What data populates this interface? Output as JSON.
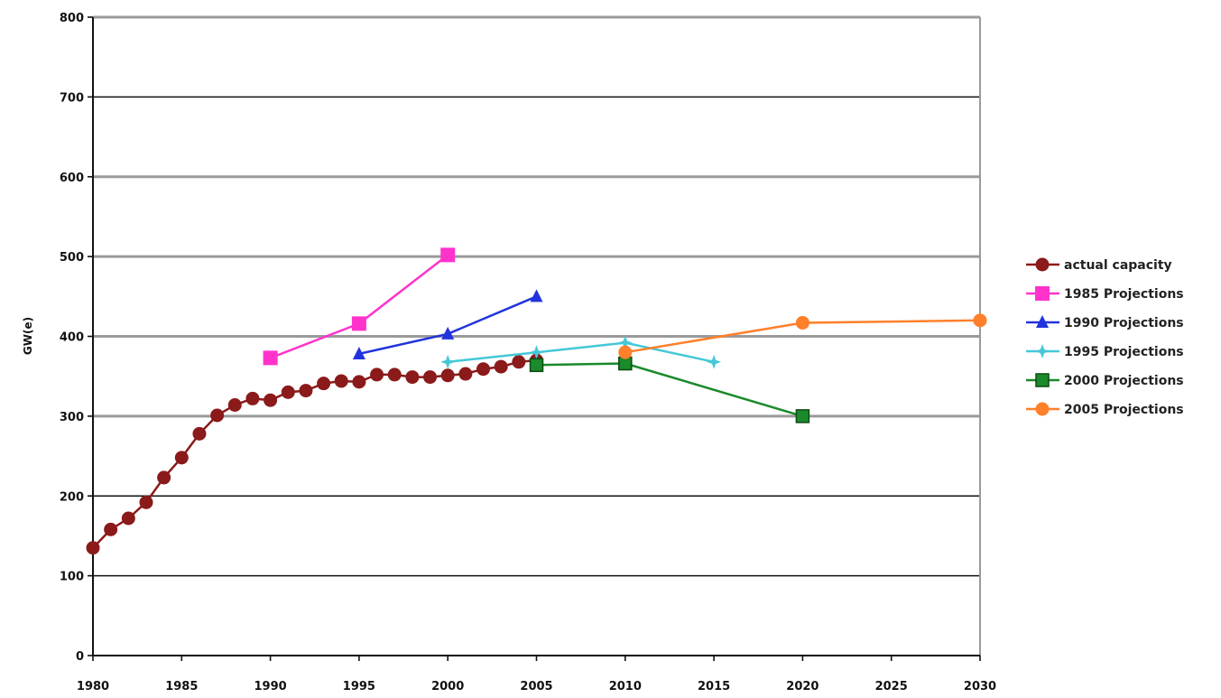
{
  "chart_data": {
    "type": "line",
    "title": "",
    "xlabel": "",
    "ylabel": "GW(e)",
    "xlim": [
      1980,
      2030
    ],
    "ylim": [
      0,
      800
    ],
    "x_ticks": [
      "1980",
      "1985",
      "1990",
      "1995",
      "2000",
      "2005",
      "2010",
      "2015",
      "2020",
      "2025",
      "2030"
    ],
    "y_ticks": [
      "0",
      "100",
      "200",
      "300",
      "400",
      "500",
      "600",
      "700",
      "800"
    ],
    "grid": "horizontal",
    "legend_position": "right",
    "series": [
      {
        "name": "actual capacity",
        "color": "#8b1a1a",
        "marker": "circle",
        "x": [
          1980,
          1981,
          1982,
          1983,
          1984,
          1985,
          1986,
          1987,
          1988,
          1989,
          1990,
          1991,
          1992,
          1993,
          1994,
          1995,
          1996,
          1997,
          1998,
          1999,
          2000,
          2001,
          2002,
          2003,
          2004,
          2005
        ],
        "y": [
          135,
          158,
          172,
          192,
          223,
          248,
          278,
          301,
          314,
          322,
          320,
          330,
          332,
          341,
          344,
          343,
          352,
          352,
          349,
          349,
          351,
          353,
          359,
          362,
          368,
          370
        ]
      },
      {
        "name": "1985 Projections",
        "color": "#ff33cc",
        "marker": "square",
        "x": [
          1990,
          1995,
          2000
        ],
        "y": [
          373,
          416,
          502
        ]
      },
      {
        "name": "1990 Projections",
        "color": "#2233dd",
        "marker": "triangle",
        "x": [
          1995,
          2000,
          2005
        ],
        "y": [
          378,
          403,
          450
        ]
      },
      {
        "name": "1995 Projections",
        "color": "#44c8d8",
        "marker": "star",
        "x": [
          2000,
          2005,
          2010,
          2015
        ],
        "y": [
          368,
          380,
          392,
          368
        ]
      },
      {
        "name": "2000 Projections",
        "color": "#1a8a2a",
        "marker": "square-open",
        "x": [
          2005,
          2010,
          2020
        ],
        "y": [
          364,
          366,
          300
        ]
      },
      {
        "name": "2005 Projections",
        "color": "#ff7f2a",
        "marker": "circle",
        "x": [
          2010,
          2020,
          2030
        ],
        "y": [
          380,
          417,
          420
        ]
      }
    ]
  }
}
